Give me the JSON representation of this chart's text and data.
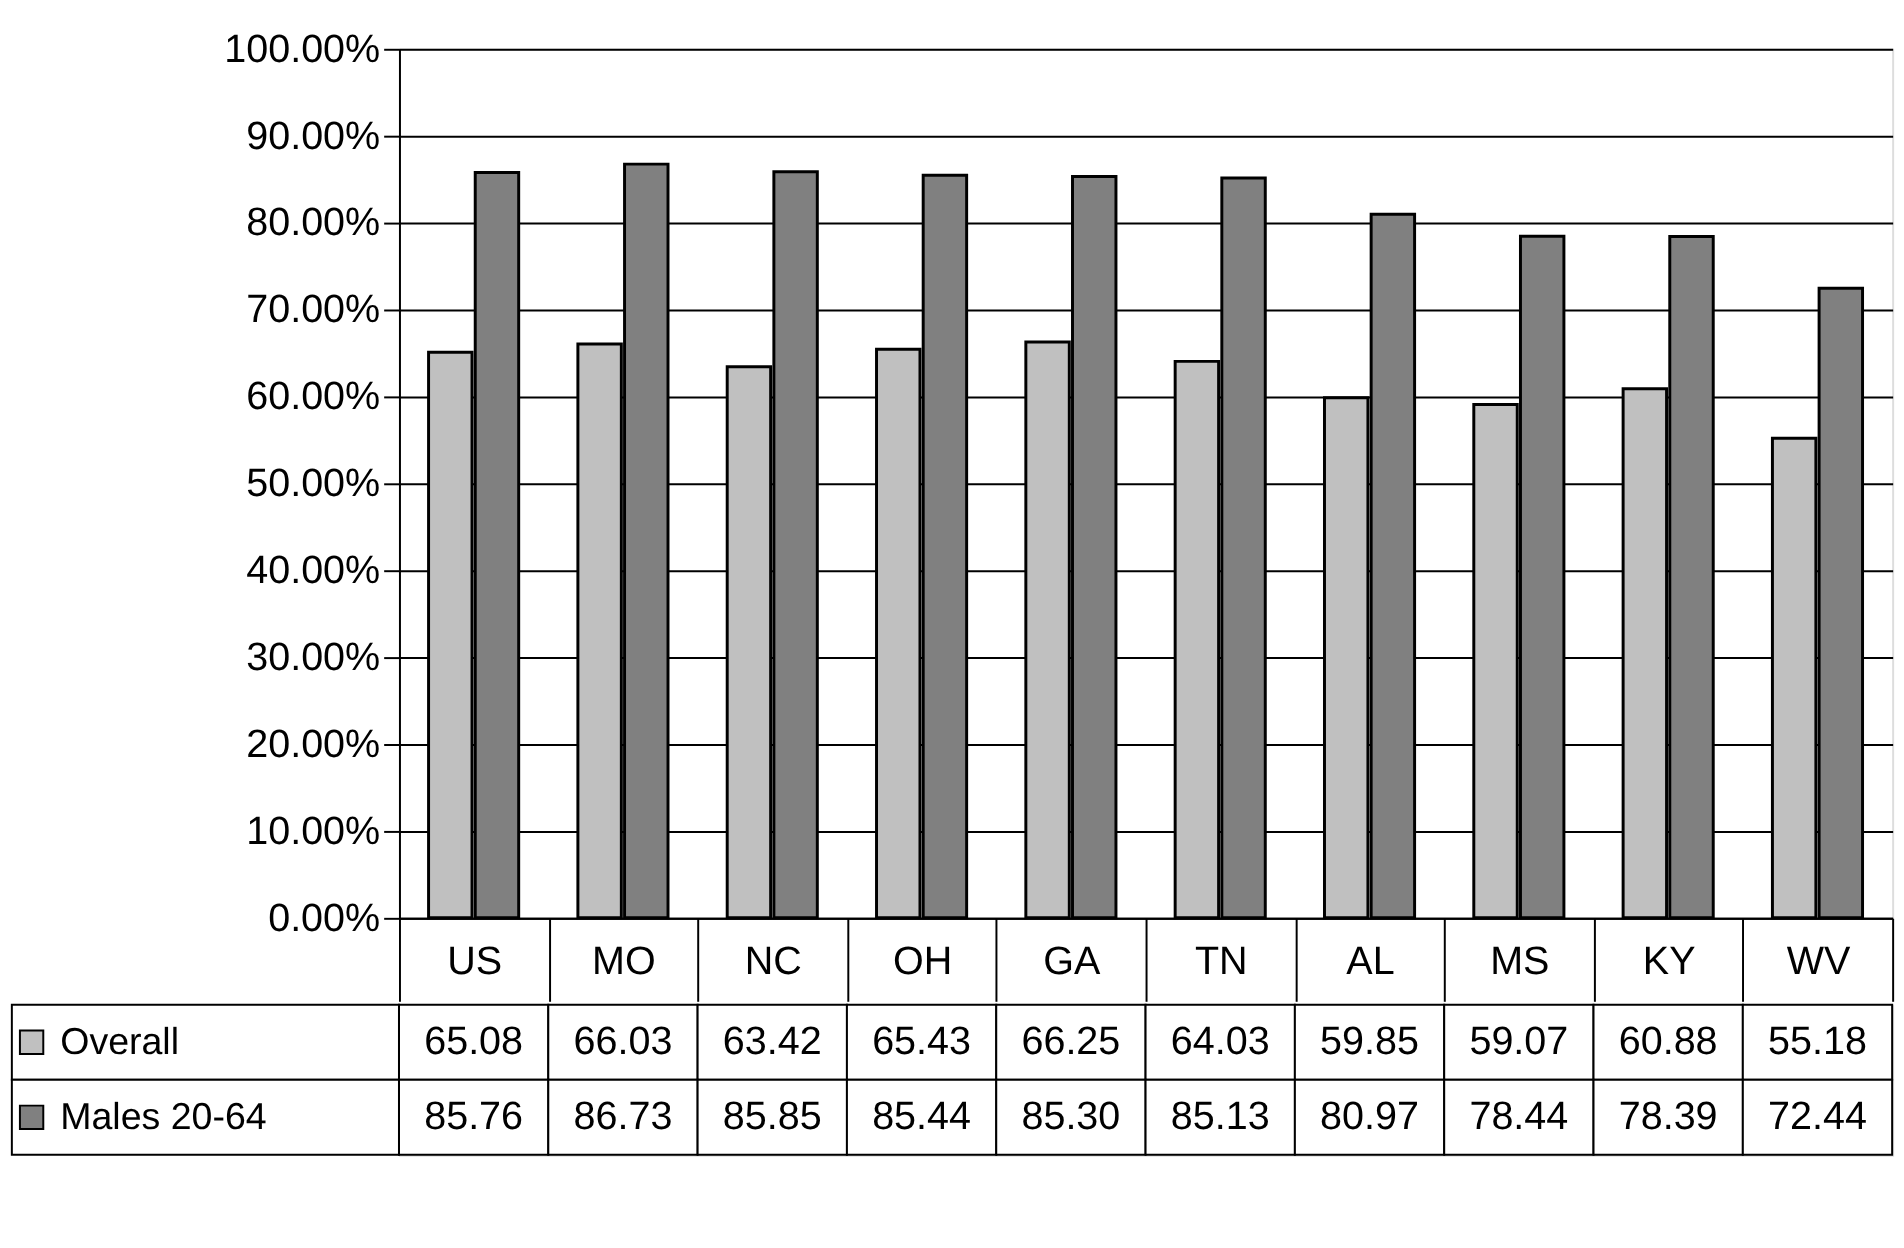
{
  "chart_data": {
    "type": "bar",
    "categories": [
      "US",
      "MO",
      "NC",
      "OH",
      "GA",
      "TN",
      "AL",
      "MS",
      "KY",
      "WV"
    ],
    "series": [
      {
        "name": "Overall",
        "color": "#c0c0c0",
        "values": [
          65.08,
          66.03,
          63.42,
          65.43,
          66.25,
          64.03,
          59.85,
          59.07,
          60.88,
          55.18
        ],
        "value_labels": [
          "65.08",
          "66.03",
          "63.42",
          "65.43",
          "66.25",
          "64.03",
          "59.85",
          "59.07",
          "60.88",
          "55.18"
        ]
      },
      {
        "name": "Males 20-64",
        "color": "#808080",
        "values": [
          85.76,
          86.73,
          85.85,
          85.44,
          85.3,
          85.13,
          80.97,
          78.44,
          78.39,
          72.44
        ],
        "value_labels": [
          "85.76",
          "86.73",
          "85.85",
          "85.44",
          "85.30",
          "85.13",
          "80.97",
          "78.44",
          "78.39",
          "72.44"
        ]
      }
    ],
    "ylim": [
      0,
      100
    ],
    "yticks": [
      {
        "value": 0,
        "label": "0.00%"
      },
      {
        "value": 10,
        "label": "10.00%"
      },
      {
        "value": 20,
        "label": "20.00%"
      },
      {
        "value": 30,
        "label": "30.00%"
      },
      {
        "value": 40,
        "label": "40.00%"
      },
      {
        "value": 50,
        "label": "50.00%"
      },
      {
        "value": 60,
        "label": "60.00%"
      },
      {
        "value": 70,
        "label": "70.00%"
      },
      {
        "value": 80,
        "label": "80.00%"
      },
      {
        "value": 90,
        "label": "90.00%"
      },
      {
        "value": 100,
        "label": "100.00%"
      }
    ],
    "grid": "y",
    "legend": "bottom"
  }
}
